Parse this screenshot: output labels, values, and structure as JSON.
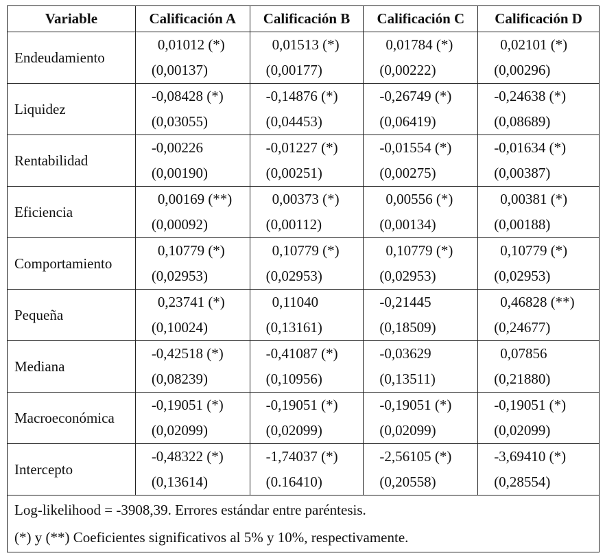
{
  "table": {
    "header": [
      "Variable",
      "Calificación A",
      "Calificación B",
      "Calificación C",
      "Calificación D"
    ],
    "rows": [
      {
        "variable": "Endeudamiento",
        "cells": [
          {
            "coef": "0,01012 (*)",
            "se": "(0,00137)"
          },
          {
            "coef": "0,01513 (*)",
            "se": "(0,00177)"
          },
          {
            "coef": "0,01784 (*)",
            "se": "(0,00222)"
          },
          {
            "coef": "0,02101 (*)",
            "se": "(0,00296)"
          }
        ]
      },
      {
        "variable": "Liquidez",
        "cells": [
          {
            "coef": "-0,08428 (*)",
            "se": "(0,03055)"
          },
          {
            "coef": "-0,14876 (*)",
            "se": "(0,04453)"
          },
          {
            "coef": "-0,26749 (*)",
            "se": "(0,06419)"
          },
          {
            "coef": "-0,24638 (*)",
            "se": "(0,08689)"
          }
        ]
      },
      {
        "variable": "Rentabilidad",
        "cells": [
          {
            "coef": "-0,00226",
            "se": "(0,00190)"
          },
          {
            "coef": "-0,01227 (*)",
            "se": "(0,00251)"
          },
          {
            "coef": "-0,01554 (*)",
            "se": "(0,00275)"
          },
          {
            "coef": "-0,01634 (*)",
            "se": "(0,00387)"
          }
        ]
      },
      {
        "variable": "Eficiencia",
        "cells": [
          {
            "coef": "0,00169 (**)",
            "se": "(0,00092)"
          },
          {
            "coef": "0,00373 (*)",
            "se": "(0,00112)"
          },
          {
            "coef": "0,00556 (*)",
            "se": "(0,00134)"
          },
          {
            "coef": "0,00381 (*)",
            "se": "(0,00188)"
          }
        ]
      },
      {
        "variable": "Comportamiento",
        "cells": [
          {
            "coef": "0,10779 (*)",
            "se": "(0,02953)"
          },
          {
            "coef": "0,10779 (*)",
            "se": "(0,02953)"
          },
          {
            "coef": "0,10779 (*)",
            "se": "(0,02953)"
          },
          {
            "coef": "0,10779 (*)",
            "se": "(0,02953)"
          }
        ]
      },
      {
        "variable": "Pequeña",
        "cells": [
          {
            "coef": "0,23741 (*)",
            "se": "(0,10024)"
          },
          {
            "coef": "0,11040",
            "se": "(0,13161)"
          },
          {
            "coef": "-0,21445",
            "se": "(0,18509)"
          },
          {
            "coef": "0,46828 (**)",
            "se": "(0,24677)"
          }
        ]
      },
      {
        "variable": "Mediana",
        "cells": [
          {
            "coef": "-0,42518 (*)",
            "se": "(0,08239)"
          },
          {
            "coef": "-0,41087 (*)",
            "se": "(0,10956)"
          },
          {
            "coef": "-0,03629",
            "se": "(0,13511)"
          },
          {
            "coef": "0,07856",
            "se": "(0,21880)"
          }
        ]
      },
      {
        "variable": "Macroeconómica",
        "cells": [
          {
            "coef": "-0,19051 (*)",
            "se": "(0,02099)"
          },
          {
            "coef": "-0,19051 (*)",
            "se": "(0,02099)"
          },
          {
            "coef": "-0,19051 (*)",
            "se": "(0,02099)"
          },
          {
            "coef": "-0,19051 (*)",
            "se": "(0,02099)"
          }
        ]
      },
      {
        "variable": "Intercepto",
        "cells": [
          {
            "coef": "-0,48322 (*)",
            "se": "(0,13614)"
          },
          {
            "coef": "-1,74037 (*)",
            "se": "(0.16410)"
          },
          {
            "coef": "-2,56105 (*)",
            "se": "(0,20558)"
          },
          {
            "coef": "-3,69410 (*)",
            "se": "(0,28554)"
          }
        ]
      }
    ]
  },
  "notes": [
    "Log-likelihood = -3908,39. Errores estándar entre paréntesis.",
    "(*) y (**) Coeficientes significativos al 5% y 10%, respectivamente."
  ]
}
